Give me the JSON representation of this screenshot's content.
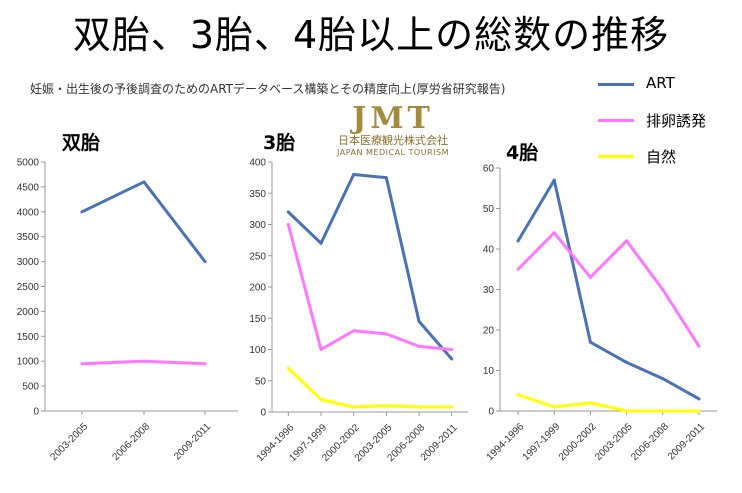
{
  "header": {
    "title": "双胎、3胎、4胎以上の総数の推移",
    "subtitle": "妊娠・出生後の予後調査のためのARTデータベース構築とその精度向上(厚労省研究報告)"
  },
  "logo": {
    "mark": "JMT",
    "japanese": "日本医療観光株式会社",
    "english": "JAPAN MEDICAL TOURISM"
  },
  "legend": [
    {
      "label": "ART",
      "color": "#4a72b5"
    },
    {
      "label": "排卵誘発",
      "color": "#ff77ff"
    },
    {
      "label": "自然",
      "color": "#ffff00"
    }
  ],
  "chart_data": [
    {
      "type": "line",
      "title": "双胎",
      "categories": [
        "2003-2005",
        "2006-2008",
        "2009-2011"
      ],
      "ylim": [
        0,
        5000
      ],
      "yticks": [
        0,
        500,
        1000,
        1500,
        2000,
        2500,
        3000,
        3500,
        4000,
        4500,
        5000
      ],
      "series": [
        {
          "name": "ART",
          "color": "#4a72b5",
          "values": [
            4000,
            4600,
            3000
          ]
        },
        {
          "name": "排卵誘発",
          "color": "#ff77ff",
          "values": [
            950,
            1000,
            950
          ]
        }
      ]
    },
    {
      "type": "line",
      "title": "3胎",
      "categories": [
        "1994-1996",
        "1997-1999",
        "2000-2002",
        "2003-2005",
        "2006-2008",
        "2009-2011"
      ],
      "ylim": [
        0,
        400
      ],
      "yticks": [
        0,
        50,
        100,
        150,
        200,
        250,
        300,
        350,
        400
      ],
      "series": [
        {
          "name": "ART",
          "color": "#4a72b5",
          "values": [
            320,
            270,
            380,
            375,
            145,
            85
          ]
        },
        {
          "name": "排卵誘発",
          "color": "#ff77ff",
          "values": [
            300,
            100,
            130,
            125,
            105,
            100
          ]
        },
        {
          "name": "自然",
          "color": "#ffff00",
          "values": [
            70,
            20,
            8,
            10,
            8,
            8
          ]
        }
      ]
    },
    {
      "type": "line",
      "title": "4胎",
      "categories": [
        "1994-1996",
        "1997-1999",
        "2000-2002",
        "2003-2005",
        "2006-2008",
        "2009-2011"
      ],
      "ylim": [
        0,
        60
      ],
      "yticks": [
        0,
        10,
        20,
        30,
        40,
        50,
        60
      ],
      "series": [
        {
          "name": "ART",
          "color": "#4a72b5",
          "values": [
            42,
            57,
            17,
            12,
            8,
            3
          ]
        },
        {
          "name": "排卵誘発",
          "color": "#ff77ff",
          "values": [
            35,
            44,
            33,
            42,
            30,
            16
          ]
        },
        {
          "name": "自然",
          "color": "#ffff00",
          "values": [
            4,
            1,
            2,
            0,
            0,
            0
          ]
        }
      ]
    }
  ]
}
